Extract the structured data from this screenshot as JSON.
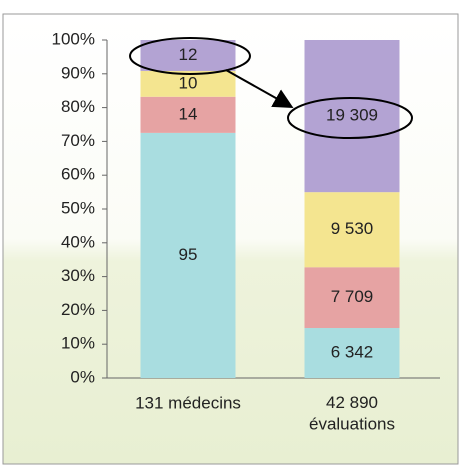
{
  "chart_data": {
    "type": "bar",
    "stacked": "percent",
    "categories": [
      "131 médecins",
      "42 890\névaluations"
    ],
    "series": [
      {
        "color": "#a9dde0",
        "values": [
          95,
          6342
        ],
        "value_labels": [
          "95",
          "6 342"
        ]
      },
      {
        "color": "#e6a3a3",
        "values": [
          14,
          7709
        ],
        "value_labels": [
          "14",
          "7 709"
        ]
      },
      {
        "color": "#f4e590",
        "values": [
          10,
          9530
        ],
        "value_labels": [
          "10",
          "9 530"
        ]
      },
      {
        "color": "#b3a3d3",
        "values": [
          12,
          19309
        ],
        "value_labels": [
          "12",
          "19 309"
        ]
      }
    ],
    "ylim": [
      0,
      100
    ],
    "yticks": [
      {
        "value": 0,
        "label": "0%"
      },
      {
        "value": 10,
        "label": "10%"
      },
      {
        "value": 20,
        "label": "20%"
      },
      {
        "value": 30,
        "label": "30%"
      },
      {
        "value": 40,
        "label": "40%"
      },
      {
        "value": 50,
        "label": "50%"
      },
      {
        "value": 60,
        "label": "60%"
      },
      {
        "value": 70,
        "label": "70%"
      },
      {
        "value": 80,
        "label": "80%"
      },
      {
        "value": 90,
        "label": "90%"
      },
      {
        "value": 100,
        "label": "100%"
      }
    ]
  }
}
